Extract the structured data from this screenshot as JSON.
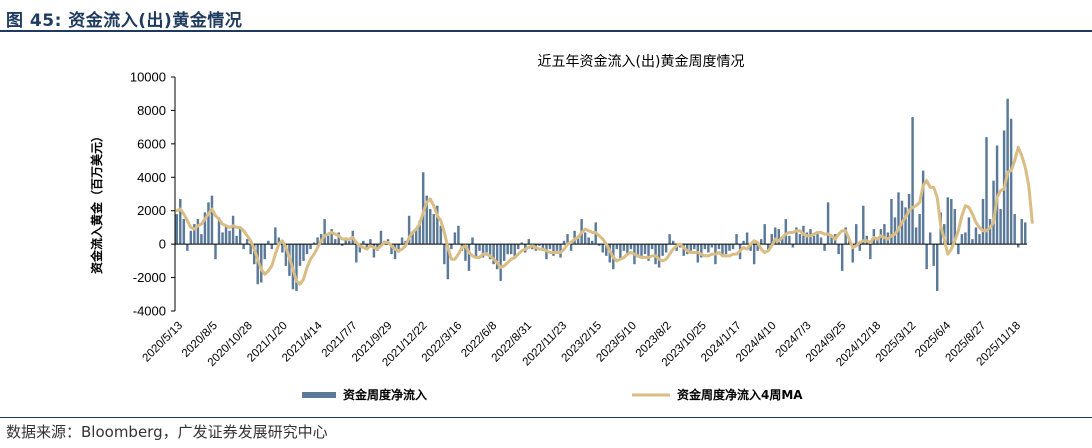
{
  "figure": {
    "title": "图 45:  资金流入(出)黄金情况",
    "source": "数据来源：Bloomberg，广发证券发展研究中心"
  },
  "colors": {
    "bar": "#5b7a99",
    "line": "#d9bd84",
    "axis": "#000000",
    "rule": "#1f3a5f"
  },
  "chart_data": {
    "type": "bar",
    "title": "近五年资金流入(出)黄金周度情况",
    "ylabel": "资金流入黄金（百万美元）",
    "ylim": [
      -4000,
      10000
    ],
    "yticks": [
      -4000,
      -2000,
      0,
      2000,
      4000,
      6000,
      8000,
      10000
    ],
    "xtick_labels": [
      "2020/5/13",
      "2020/8/5",
      "2020/10/28",
      "2021/1/20",
      "2021/4/14",
      "2021/7/7",
      "2021/9/29",
      "2021/12/22",
      "2022/3/16",
      "2022/6/8",
      "2022/8/31",
      "2022/11/23",
      "2023/2/15",
      "2023/5/10",
      "2023/8/2",
      "2023/10/25",
      "2024/1/17",
      "2024/4/10",
      "2024/7/3",
      "2024/9/25",
      "2024/12/18",
      "2025/3/12",
      "2025/6/4",
      "2025/8/27",
      "2025/11/18"
    ],
    "series": [
      {
        "name": "资金周度净流入",
        "type": "bar",
        "values": [
          1800,
          2700,
          1500,
          -400,
          800,
          1200,
          1500,
          600,
          1900,
          2500,
          2900,
          -900,
          1600,
          700,
          1100,
          800,
          1700,
          500,
          1000,
          -300,
          300,
          -600,
          -1200,
          -2400,
          -2300,
          -900,
          200,
          -300,
          1000,
          400,
          -500,
          -1300,
          -1900,
          -2700,
          -2800,
          -1300,
          -1000,
          -600,
          -300,
          100,
          400,
          600,
          1500,
          500,
          900,
          300,
          700,
          -100,
          400,
          200,
          800,
          -1100,
          -500,
          200,
          -300,
          300,
          -800,
          -400,
          800,
          200,
          300,
          -600,
          -900,
          -500,
          400,
          200,
          1700,
          700,
          900,
          1400,
          4300,
          2900,
          2100,
          1800,
          2300,
          1100,
          -1200,
          -2100,
          -300,
          700,
          1100,
          -400,
          -1000,
          -1600,
          400,
          -800,
          -400,
          -800,
          -500,
          -900,
          -1200,
          -1500,
          -2200,
          -1000,
          -600,
          -600,
          -800,
          -300,
          100,
          -500,
          300,
          -300,
          -400,
          -100,
          -400,
          -900,
          -300,
          -700,
          -400,
          -800,
          200,
          600,
          -400,
          800,
          500,
          1500,
          700,
          400,
          200,
          1300,
          -100,
          -500,
          -700,
          -1100,
          -1500,
          -300,
          -900,
          -400,
          -600,
          -300,
          -1200,
          -800,
          -700,
          -600,
          -1000,
          -300,
          -1200,
          -1400,
          -700,
          -500,
          600,
          200,
          -400,
          -200,
          -700,
          -600,
          -400,
          -300,
          -1100,
          -800,
          -300,
          -500,
          -200,
          -1200,
          -300,
          -700,
          -600,
          -400,
          -300,
          600,
          -900,
          200,
          700,
          -400,
          -1200,
          -400,
          300,
          1200,
          -400,
          600,
          1000,
          900,
          400,
          1500,
          500,
          -200,
          1000,
          600,
          1100,
          700,
          900,
          500,
          600,
          400,
          -400,
          2500,
          400,
          600,
          -600,
          -1600,
          1000,
          200,
          -1100,
          1200,
          -400,
          2300,
          500,
          -900,
          900,
          400,
          900,
          1200,
          700,
          2700,
          1600,
          3100,
          2600,
          2200,
          3000,
          7600,
          1000,
          1800,
          4400,
          -1500,
          700,
          -1300,
          -2800,
          1900,
          1200,
          2800,
          2700,
          2100,
          -600,
          600,
          700,
          1600,
          300,
          1000,
          600,
          2700,
          6400,
          1500,
          3800,
          5900,
          2100,
          6800,
          8700,
          7500,
          1800,
          -200,
          1500,
          1300
        ]
      },
      {
        "name": "资金周度净流入4周MA",
        "type": "line",
        "values": [
          2000,
          2100,
          1800,
          1400,
          1000,
          900,
          1100,
          1200,
          1500,
          1800,
          2100,
          1700,
          1500,
          1200,
          1100,
          1000,
          1100,
          1000,
          1000,
          800,
          500,
          200,
          -300,
          -900,
          -1500,
          -1800,
          -1600,
          -1300,
          -600,
          0,
          200,
          -200,
          -800,
          -1500,
          -2200,
          -2400,
          -2100,
          -1400,
          -900,
          -600,
          -200,
          200,
          500,
          600,
          700,
          600,
          500,
          300,
          300,
          300,
          400,
          100,
          -100,
          -200,
          -300,
          -100,
          -200,
          -300,
          -100,
          100,
          100,
          -100,
          -300,
          -400,
          -300,
          -100,
          400,
          700,
          900,
          1200,
          1900,
          2500,
          2700,
          2300,
          1700,
          1400,
          700,
          -200,
          -900,
          -900,
          -600,
          -200,
          -100,
          -500,
          -700,
          -800,
          -800,
          -600,
          -600,
          -700,
          -900,
          -1100,
          -1400,
          -1300,
          -1100,
          -900,
          -800,
          -600,
          -400,
          -300,
          -200,
          -100,
          -200,
          -300,
          -300,
          -400,
          -500,
          -500,
          -500,
          -500,
          -300,
          0,
          100,
          300,
          400,
          700,
          900,
          800,
          700,
          700,
          500,
          300,
          0,
          -400,
          -800,
          -1000,
          -900,
          -800,
          -600,
          -500,
          -600,
          -700,
          -800,
          -800,
          -800,
          -700,
          -700,
          -900,
          -1000,
          -900,
          -600,
          -300,
          -100,
          0,
          -200,
          -400,
          -500,
          -500,
          -500,
          -600,
          -700,
          -700,
          -600,
          -600,
          -500,
          -700,
          -700,
          -700,
          -600,
          -600,
          -400,
          -200,
          -300,
          0,
          200,
          100,
          -300,
          -500,
          -400,
          -100,
          300,
          200,
          400,
          600,
          700,
          700,
          800,
          800,
          600,
          500,
          500,
          600,
          700,
          700,
          600,
          600,
          500,
          300,
          600,
          800,
          800,
          300,
          -200,
          -100,
          100,
          200,
          200,
          100,
          400,
          300,
          500,
          400,
          300,
          500,
          600,
          900,
          1300,
          1600,
          2000,
          2200,
          2300,
          2500,
          3500,
          3800,
          3400,
          3400,
          2800,
          1100,
          300,
          -600,
          -300,
          200,
          800,
          1700,
          2300,
          2200,
          1800,
          1300,
          1000,
          800,
          800,
          1000,
          1300,
          2800,
          3200,
          3300,
          4300,
          4400,
          5000,
          5800,
          5300,
          4600,
          3500,
          1300
        ]
      }
    ],
    "legend": {
      "position": "bottom"
    },
    "grid": false
  }
}
